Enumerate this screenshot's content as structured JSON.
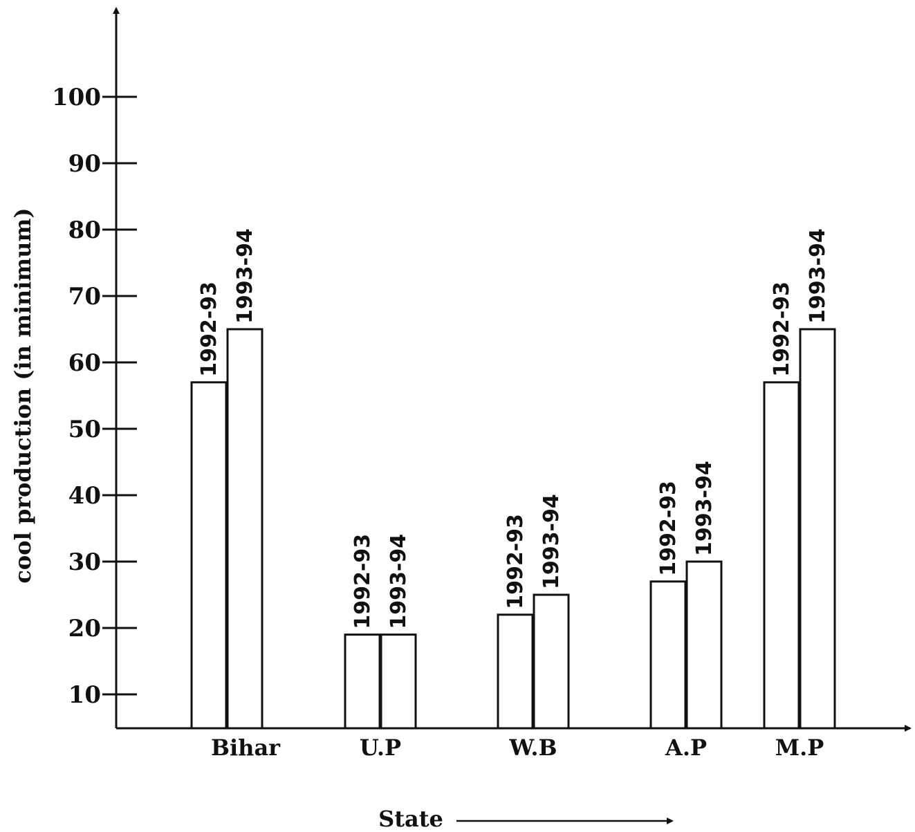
{
  "chart_data": {
    "type": "bar",
    "categories": [
      "Bihar",
      "U.P",
      "W.B",
      "A.P",
      "M.P"
    ],
    "series": [
      {
        "name": "1992-93",
        "values": [
          57,
          19,
          22,
          27,
          57
        ]
      },
      {
        "name": "1993-94",
        "values": [
          65,
          19,
          25,
          30,
          65
        ]
      }
    ],
    "xlabel": "State",
    "ylabel": "cool production (in minimum)",
    "yticks": [
      10,
      20,
      30,
      40,
      50,
      60,
      70,
      80,
      90,
      100
    ],
    "ylim": [
      5,
      105
    ],
    "grid": false,
    "legend": "none",
    "bar_fill": "#ffffff",
    "stroke_color": "#111111"
  }
}
